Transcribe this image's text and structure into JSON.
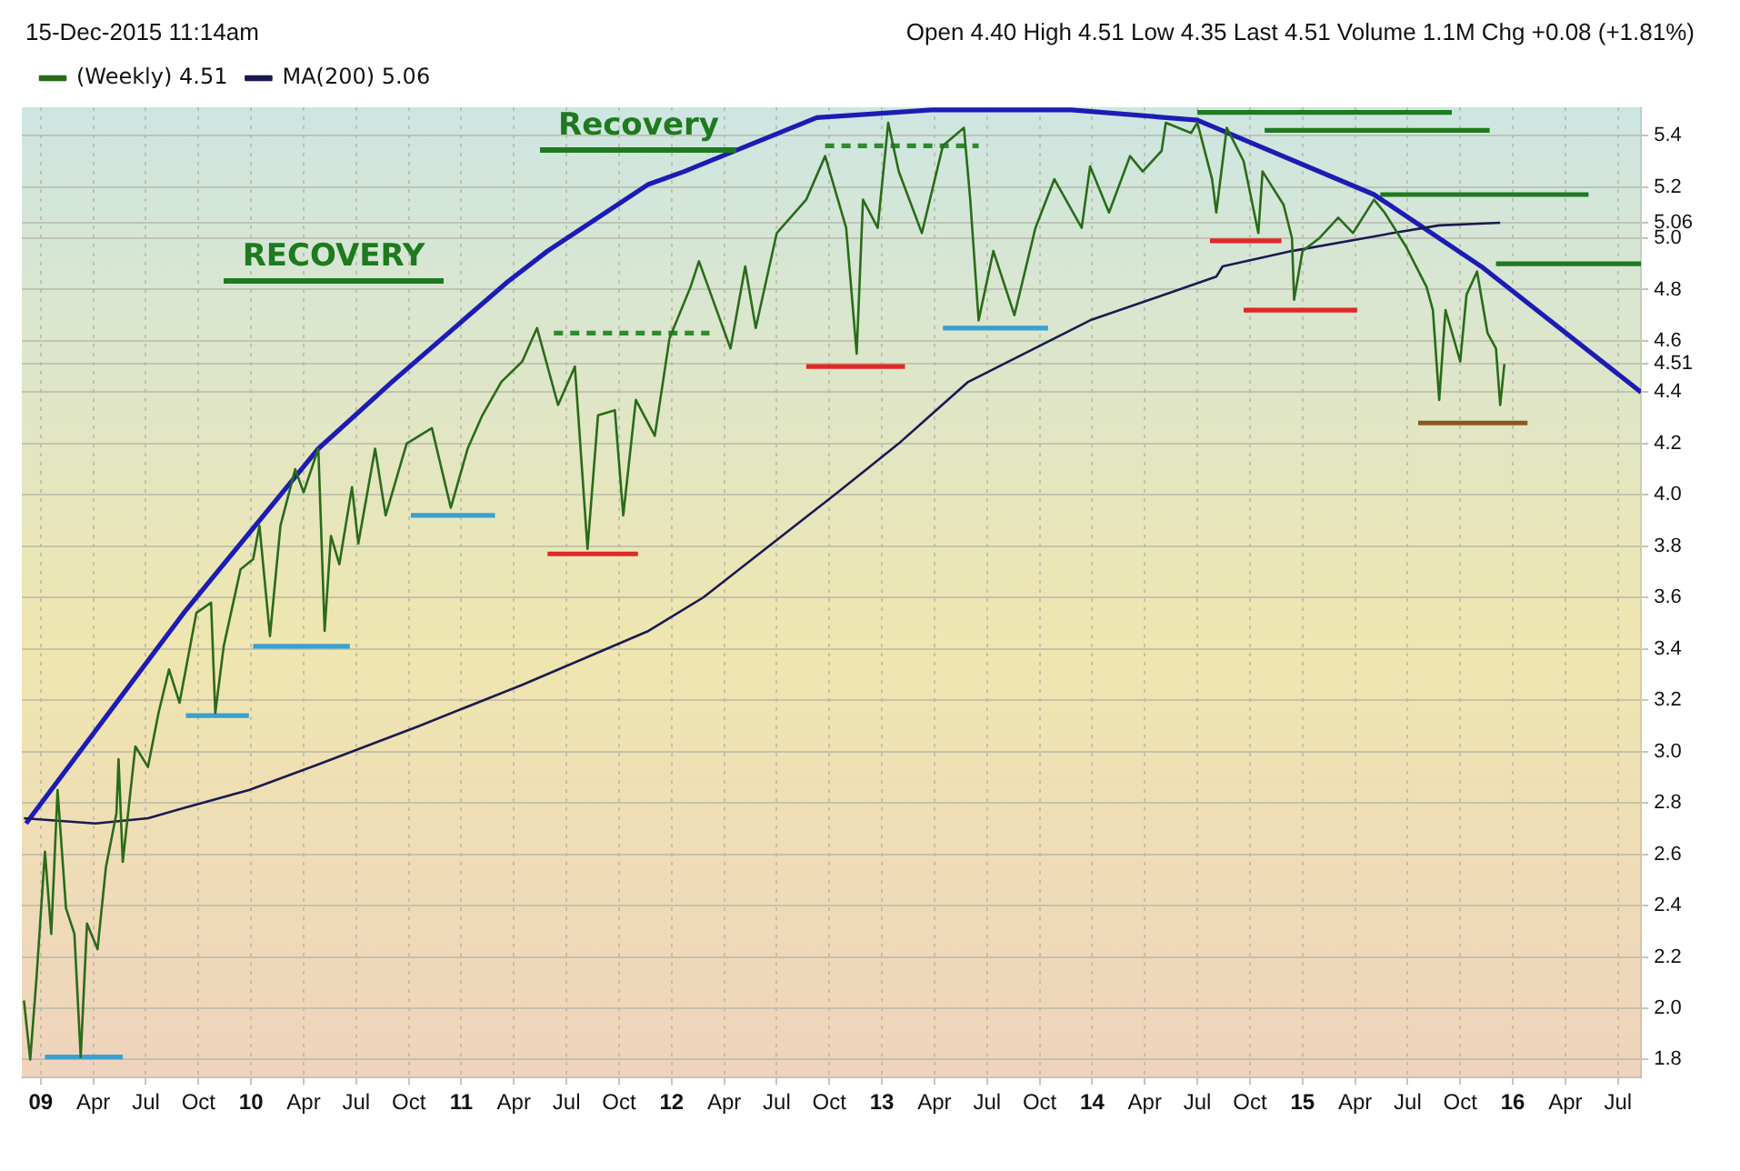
{
  "chart_data": {
    "type": "line",
    "subtitle": "15-Dec-2015 11:14am",
    "annotations": [
      "Open 4.40 High 4.51 Low 4.35 Last 4.51 Volume 1.1M Chg +0.08 (+1.81%)",
      "RECOVERY",
      "Recovery"
    ],
    "xlim": [
      2008.91,
      2016.61
    ],
    "xticks": [
      {
        "value": 2009,
        "label": "09"
      },
      {
        "value": 2009.25,
        "label": "Apr"
      },
      {
        "value": 2009.5,
        "label": "Jul"
      },
      {
        "value": 2009.75,
        "label": "Oct"
      },
      {
        "value": 2010,
        "label": "10"
      },
      {
        "value": 2010.25,
        "label": "Apr"
      },
      {
        "value": 2010.5,
        "label": "Jul"
      },
      {
        "value": 2010.75,
        "label": "Oct"
      },
      {
        "value": 2011,
        "label": "11"
      },
      {
        "value": 2011.25,
        "label": "Apr"
      },
      {
        "value": 2011.5,
        "label": "Jul"
      },
      {
        "value": 2011.75,
        "label": "Oct"
      },
      {
        "value": 2012,
        "label": "12"
      },
      {
        "value": 2012.25,
        "label": "Apr"
      },
      {
        "value": 2012.5,
        "label": "Jul"
      },
      {
        "value": 2012.75,
        "label": "Oct"
      },
      {
        "value": 2013,
        "label": "13"
      },
      {
        "value": 2013.25,
        "label": "Apr"
      },
      {
        "value": 2013.5,
        "label": "Jul"
      },
      {
        "value": 2013.75,
        "label": "Oct"
      },
      {
        "value": 2014,
        "label": "14"
      },
      {
        "value": 2014.25,
        "label": "Apr"
      },
      {
        "value": 2014.5,
        "label": "Jul"
      },
      {
        "value": 2014.75,
        "label": "Oct"
      },
      {
        "value": 2015,
        "label": "15"
      },
      {
        "value": 2015.25,
        "label": "Apr"
      },
      {
        "value": 2015.5,
        "label": "Jul"
      },
      {
        "value": 2015.75,
        "label": "Oct"
      },
      {
        "value": 2016,
        "label": "16"
      },
      {
        "value": 2016.25,
        "label": "Apr"
      },
      {
        "value": 2016.5,
        "label": "Jul"
      }
    ],
    "ylim": [
      1.73,
      5.51
    ],
    "yticks": [
      {
        "value": 1.8,
        "label": "1.8"
      },
      {
        "value": 2,
        "label": "2.0"
      },
      {
        "value": 2.2,
        "label": "2.2"
      },
      {
        "value": 2.4,
        "label": "2.4"
      },
      {
        "value": 2.6,
        "label": "2.6"
      },
      {
        "value": 2.8,
        "label": "2.8"
      },
      {
        "value": 3,
        "label": "3.0"
      },
      {
        "value": 3.2,
        "label": "3.2"
      },
      {
        "value": 3.4,
        "label": "3.4"
      },
      {
        "value": 3.6,
        "label": "3.6"
      },
      {
        "value": 3.8,
        "label": "3.8"
      },
      {
        "value": 4,
        "label": "4.0"
      },
      {
        "value": 4.2,
        "label": "4.2"
      },
      {
        "value": 4.4,
        "label": "4.4"
      },
      {
        "value": 4.51,
        "label": "4.51"
      },
      {
        "value": 4.6,
        "label": "4.6"
      },
      {
        "value": 4.8,
        "label": "4.8"
      },
      {
        "value": 5,
        "label": "5.0"
      },
      {
        "value": 5.06,
        "label": "5.06"
      },
      {
        "value": 5.2,
        "label": "5.2"
      },
      {
        "value": 5.4,
        "label": "5.4"
      }
    ],
    "grid": true,
    "legend": "top left",
    "marker": "none",
    "series": [
      {
        "name": "(Weekly) 4.51",
        "color": "#2a6b1a",
        "x": [
          2008.92,
          2008.95,
          2008.98,
          2009.02,
          2009.05,
          2009.08,
          2009.12,
          2009.16,
          2009.19,
          2009.22,
          2009.27,
          2009.31,
          2009.36,
          2009.37,
          2009.39,
          2009.45,
          2009.51,
          2009.56,
          2009.61,
          2009.66,
          2009.74,
          2009.81,
          2009.83,
          2009.87,
          2009.95,
          2010.01,
          2010.04,
          2010.09,
          2010.14,
          2010.21,
          2010.25,
          2010.32,
          2010.35,
          2010.38,
          2010.42,
          2010.48,
          2010.51,
          2010.59,
          2010.64,
          2010.74,
          2010.86,
          2010.95,
          2011.03,
          2011.1,
          2011.19,
          2011.29,
          2011.36,
          2011.46,
          2011.54,
          2011.6,
          2011.65,
          2011.73,
          2011.77,
          2011.83,
          2011.92,
          2011.99,
          2012.09,
          2012.13,
          2012.28,
          2012.35,
          2012.4,
          2012.5,
          2012.64,
          2012.73,
          2012.83,
          2012.88,
          2012.91,
          2012.98,
          2013.03,
          2013.08,
          2013.19,
          2013.29,
          2013.39,
          2013.42,
          2013.46,
          2013.53,
          2013.63,
          2013.73,
          2013.82,
          2013.95,
          2013.99,
          2014.08,
          2014.18,
          2014.24,
          2014.33,
          2014.35,
          2014.47,
          2014.5,
          2014.57,
          2014.59,
          2014.64,
          2014.72,
          2014.79,
          2014.81,
          2014.91,
          2014.95,
          2014.96,
          2015.0,
          2015.08,
          2015.17,
          2015.24,
          2015.34,
          2015.39,
          2015.49,
          2015.59,
          2015.62,
          2015.65,
          2015.68,
          2015.75,
          2015.78,
          2015.83,
          2015.88,
          2015.92,
          2015.94,
          2015.96
        ],
        "values": [
          2.03,
          1.8,
          2.12,
          2.61,
          2.29,
          2.85,
          2.39,
          2.29,
          1.81,
          2.33,
          2.23,
          2.55,
          2.76,
          2.97,
          2.57,
          3.02,
          2.94,
          3.15,
          3.32,
          3.19,
          3.54,
          3.58,
          3.15,
          3.41,
          3.71,
          3.75,
          3.88,
          3.45,
          3.88,
          4.1,
          4.01,
          4.18,
          3.47,
          3.84,
          3.73,
          4.03,
          3.81,
          4.18,
          3.92,
          4.2,
          4.26,
          3.95,
          4.18,
          4.31,
          4.44,
          4.52,
          4.65,
          4.35,
          4.5,
          3.79,
          4.31,
          4.33,
          3.92,
          4.37,
          4.23,
          4.61,
          4.81,
          4.91,
          4.57,
          4.89,
          4.65,
          5.02,
          5.15,
          5.32,
          5.04,
          4.55,
          5.15,
          5.04,
          5.45,
          5.26,
          5.02,
          5.36,
          5.43,
          5.15,
          4.68,
          4.95,
          4.7,
          5.04,
          5.23,
          5.04,
          5.28,
          5.1,
          5.32,
          5.26,
          5.34,
          5.45,
          5.41,
          5.45,
          5.23,
          5.1,
          5.43,
          5.3,
          5.02,
          5.26,
          5.13,
          5.0,
          4.76,
          4.95,
          5.0,
          5.08,
          5.02,
          5.15,
          5.1,
          4.97,
          4.81,
          4.72,
          4.37,
          4.72,
          4.52,
          4.78,
          4.87,
          4.63,
          4.57,
          4.35,
          4.51
        ]
      },
      {
        "name": "MA(200) 5.06",
        "color": "#1a1a50",
        "x": [
          2008.92,
          2009.26,
          2009.51,
          2009.68,
          2009.99,
          2010.32,
          2010.8,
          2011.29,
          2011.89,
          2012.15,
          2012.79,
          2013.08,
          2013.41,
          2013.99,
          2014.59,
          2014.62,
          2014.95,
          2015.43,
          2015.65,
          2015.94
        ],
        "values": [
          2.74,
          2.72,
          2.74,
          2.78,
          2.85,
          2.95,
          3.1,
          3.26,
          3.47,
          3.6,
          4.01,
          4.2,
          4.44,
          4.68,
          4.85,
          4.89,
          4.95,
          5.02,
          5.05,
          5.06
        ]
      },
      {
        "color": "#1c1cb4",
        "x": [
          2008.93,
          2009.68,
          2010.32,
          2010.67,
          2011.22,
          2011.41,
          2011.89,
          2012.06,
          2012.69,
          2013.24,
          2013.9,
          2014.5,
          2015.34,
          2015.85,
          2016.61
        ],
        "values": [
          2.72,
          3.54,
          4.18,
          4.44,
          4.83,
          4.95,
          5.21,
          5.26,
          5.47,
          5.5,
          5.5,
          5.46,
          5.17,
          4.89,
          4.4
        ]
      },
      {
        "color": "#3aa0d0",
        "x": [
          2009.02,
          2009.39
        ],
        "values": [
          1.81,
          1.81
        ]
      },
      {
        "color": "#3aa0d0",
        "x": [
          2009.69,
          2009.99
        ],
        "values": [
          3.14,
          3.14
        ]
      },
      {
        "color": "#3aa0d0",
        "x": [
          2010.01,
          2010.47
        ],
        "values": [
          3.41,
          3.41
        ]
      },
      {
        "color": "#3aa0d0",
        "x": [
          2010.76,
          2011.16
        ],
        "values": [
          3.92,
          3.92
        ]
      },
      {
        "color": "#3aa0d0",
        "x": [
          2013.29,
          2013.79
        ],
        "values": [
          4.65,
          4.65
        ]
      },
      {
        "color": "#e02828",
        "x": [
          2011.41,
          2011.84
        ],
        "values": [
          3.77,
          3.77
        ]
      },
      {
        "color": "#e02828",
        "x": [
          2012.64,
          2013.11
        ],
        "values": [
          4.5,
          4.5
        ]
      },
      {
        "color": "#e02828",
        "x": [
          2014.56,
          2014.9
        ],
        "values": [
          4.99,
          4.99
        ]
      },
      {
        "color": "#e02828",
        "x": [
          2014.72,
          2015.26
        ],
        "values": [
          4.72,
          4.72
        ]
      },
      {
        "color": "#1e7a1e",
        "x": [
          2014.5,
          2015.71
        ],
        "values": [
          5.49,
          5.49
        ]
      },
      {
        "color": "#1e7a1e",
        "x": [
          2014.82,
          2015.89
        ],
        "values": [
          5.42,
          5.42
        ]
      },
      {
        "color": "#1e7a1e",
        "x": [
          2015.37,
          2016.36
        ],
        "values": [
          5.17,
          5.17
        ]
      },
      {
        "color": "#1e7a1e",
        "x": [
          2015.92,
          2016.61
        ],
        "values": [
          4.9,
          4.9
        ]
      },
      {
        "color": "#2e8b2e",
        "line_style": "dashed",
        "x": [
          2011.44,
          2012.18
        ],
        "values": [
          4.63,
          4.63
        ]
      },
      {
        "color": "#2e8b2e",
        "line_style": "dashed",
        "x": [
          2012.73,
          2013.46
        ],
        "values": [
          5.36,
          5.36
        ]
      },
      {
        "color": "#8b5a1a",
        "x": [
          2015.55,
          2016.07
        ],
        "values": [
          4.28,
          4.28
        ]
      }
    ]
  }
}
